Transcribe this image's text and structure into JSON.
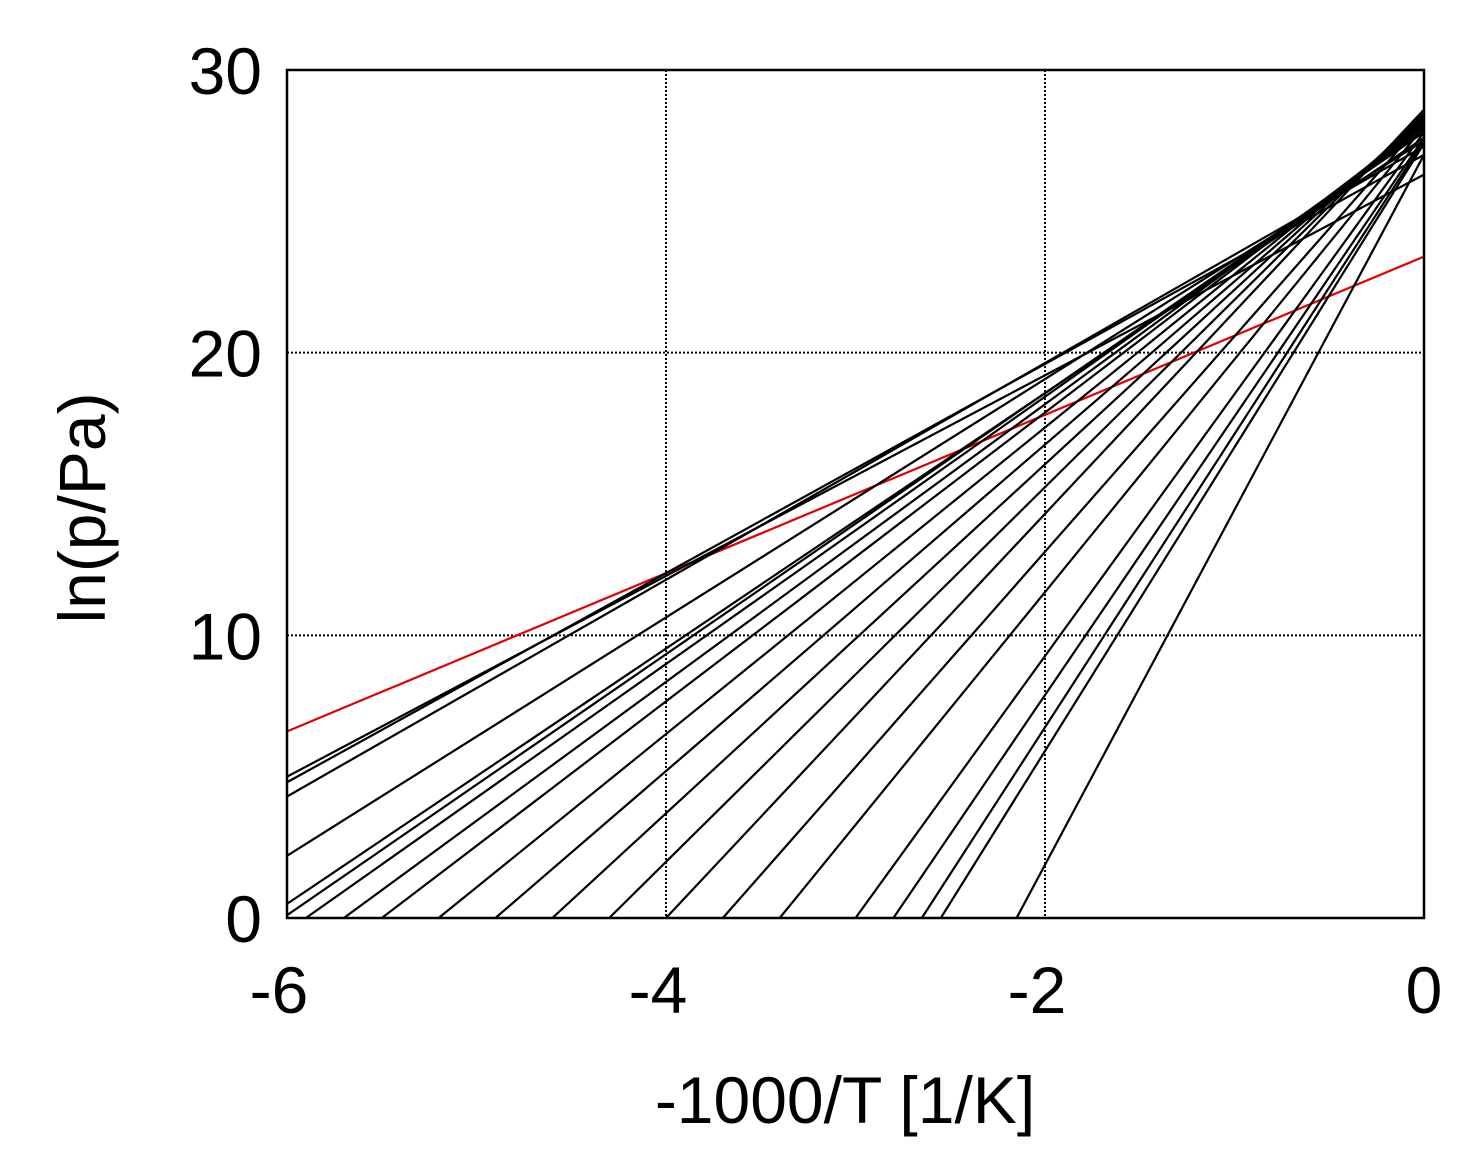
{
  "chart_data": {
    "type": "line",
    "xlabel": "-1000/T [1/K]",
    "ylabel": "ln(p/Pa)",
    "xlim": [
      -6,
      0
    ],
    "ylim": [
      0,
      30
    ],
    "xticks": [
      -6,
      -4,
      -2,
      0
    ],
    "yticks": [
      0,
      10,
      20,
      30
    ],
    "xtick_labels": [
      "-6",
      "-4",
      "-2",
      "0"
    ],
    "ytick_labels": [
      "0",
      "10",
      "20",
      "30"
    ],
    "grid": true,
    "legend": "none",
    "colors": {
      "default": "#000000",
      "highlight": "#e00000"
    },
    "series": [
      {
        "color": "#e00000",
        "x": [
          -6,
          0
        ],
        "y": [
          6.6,
          23.4
        ]
      },
      {
        "color": "#000000",
        "x": [
          -6,
          0
        ],
        "y": [
          5.0,
          26.3
        ]
      },
      {
        "color": "#000000",
        "x": [
          -6,
          0
        ],
        "y": [
          4.8,
          27.0
        ]
      },
      {
        "color": "#000000",
        "x": [
          -6,
          0
        ],
        "y": [
          4.3,
          27.3
        ]
      },
      {
        "color": "#000000",
        "x": [
          -6,
          0
        ],
        "y": [
          2.2,
          27.5
        ]
      },
      {
        "color": "#000000",
        "x": [
          -6,
          0
        ],
        "y": [
          0.5,
          27.6
        ]
      },
      {
        "color": "#000000",
        "x": [
          -6,
          0
        ],
        "y": [
          0.1,
          27.8
        ]
      },
      {
        "color": "#000000",
        "x": [
          -5.9,
          0
        ],
        "y": [
          0,
          27.9
        ]
      },
      {
        "color": "#000000",
        "x": [
          -5.7,
          0
        ],
        "y": [
          0,
          28.0
        ]
      },
      {
        "color": "#000000",
        "x": [
          -5.5,
          0
        ],
        "y": [
          0,
          28.1
        ]
      },
      {
        "color": "#000000",
        "x": [
          -5.2,
          0
        ],
        "y": [
          0,
          28.2
        ]
      },
      {
        "color": "#000000",
        "x": [
          -4.9,
          0
        ],
        "y": [
          0,
          28.3
        ]
      },
      {
        "color": "#000000",
        "x": [
          -4.6,
          0
        ],
        "y": [
          0,
          28.4
        ]
      },
      {
        "color": "#000000",
        "x": [
          -4.3,
          0
        ],
        "y": [
          0,
          28.5
        ]
      },
      {
        "color": "#000000",
        "x": [
          -4.0,
          0
        ],
        "y": [
          0,
          28.6
        ]
      },
      {
        "color": "#000000",
        "x": [
          -3.7,
          0
        ],
        "y": [
          0,
          28.2
        ]
      },
      {
        "color": "#000000",
        "x": [
          -3.4,
          0
        ],
        "y": [
          0,
          28.0
        ]
      },
      {
        "color": "#000000",
        "x": [
          -3.0,
          0
        ],
        "y": [
          0,
          27.8
        ]
      },
      {
        "color": "#000000",
        "x": [
          -2.8,
          0
        ],
        "y": [
          0,
          27.6
        ]
      },
      {
        "color": "#000000",
        "x": [
          -2.65,
          0
        ],
        "y": [
          0,
          27.5
        ]
      },
      {
        "color": "#000000",
        "x": [
          -2.55,
          0
        ],
        "y": [
          0,
          27.4
        ]
      },
      {
        "color": "#000000",
        "x": [
          -2.15,
          0
        ],
        "y": [
          0,
          27.0
        ]
      }
    ]
  }
}
